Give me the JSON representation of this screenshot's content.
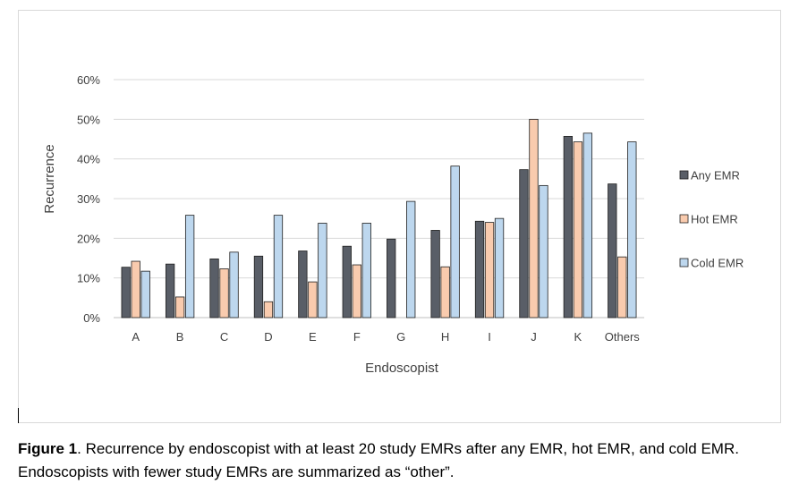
{
  "caption": {
    "label": "Figure 1",
    "text": ". Recurrence by endoscopist with at least 20 study EMRs after any EMR, hot EMR, and cold EMR. Endoscopists with fewer study EMRs are summarized as “other”."
  },
  "chart_data": {
    "type": "bar",
    "title": "",
    "xlabel": "Endoscopist",
    "ylabel": "Recurrence",
    "ylim": [
      0,
      0.6
    ],
    "yticks": [
      0,
      0.1,
      0.2,
      0.3,
      0.4,
      0.5,
      0.6
    ],
    "ytick_labels": [
      "0%",
      "10%",
      "20%",
      "30%",
      "40%",
      "50%",
      "60%"
    ],
    "grid": true,
    "legend_position": "right",
    "categories": [
      "A",
      "B",
      "C",
      "D",
      "E",
      "F",
      "G",
      "H",
      "I",
      "J",
      "K",
      "Others"
    ],
    "series": [
      {
        "name": "Any EMR",
        "color": "#595e67",
        "values": [
          0.127,
          0.135,
          0.148,
          0.155,
          0.168,
          0.18,
          0.198,
          0.22,
          0.243,
          0.373,
          0.457,
          0.337
        ]
      },
      {
        "name": "Hot EMR",
        "color": "#f9cbae",
        "values": [
          0.142,
          0.052,
          0.123,
          0.04,
          0.09,
          0.133,
          0.0,
          0.128,
          0.24,
          0.5,
          0.443,
          0.153
        ]
      },
      {
        "name": "Cold EMR",
        "color": "#bdd7ee",
        "values": [
          0.117,
          0.258,
          0.165,
          0.258,
          0.238,
          0.238,
          0.293,
          0.382,
          0.25,
          0.333,
          0.465,
          0.443
        ]
      }
    ]
  }
}
